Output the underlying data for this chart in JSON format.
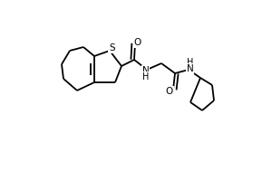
{
  "background_color": "#ffffff",
  "line_color": "#000000",
  "line_width": 1.3,
  "figsize": [
    3.0,
    2.0
  ],
  "dpi": 100,
  "S_label": "S",
  "O1_label": "O",
  "O2_label": "O",
  "NH1_label": "N",
  "NH1_H": "H",
  "NH2_label": "H\nN",
  "label_fontsize": 7.5
}
